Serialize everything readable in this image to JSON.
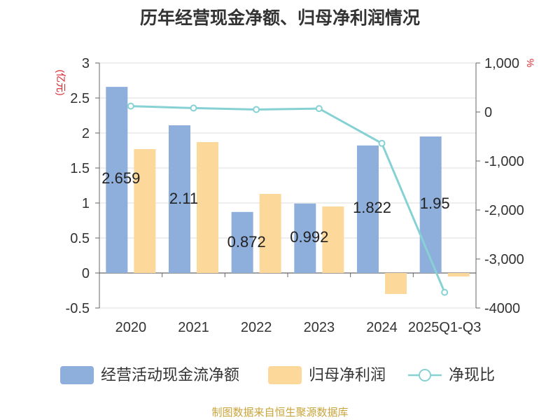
{
  "chart_data": {
    "type": "bar+line",
    "title": "历年经营现金净额、归母净利润情况",
    "left_axis": {
      "unit": "(亿元)",
      "ylim": [
        -0.5,
        3
      ],
      "ticks": [
        -0.5,
        0,
        0.5,
        1,
        1.5,
        2,
        2.5,
        3
      ]
    },
    "right_axis": {
      "unit": "%",
      "ylim": [
        -4000,
        1000
      ],
      "ticks": [
        -4000,
        -3000,
        -2000,
        -1000,
        0,
        1000
      ],
      "tick_labels": [
        "-4000",
        "-3,000",
        "-2,000",
        "-1,000",
        "0",
        "1,000"
      ]
    },
    "categories": [
      "2020",
      "2021",
      "2022",
      "2023",
      "2024",
      "2025Q1-Q3"
    ],
    "series": [
      {
        "name": "经营活动现金流净额",
        "type": "bar",
        "axis": "left",
        "color": "#8eaedc",
        "values": [
          2.659,
          2.11,
          0.872,
          0.992,
          1.822,
          1.95
        ],
        "labels": [
          "2.659",
          "2.11",
          "0.872",
          "0.992",
          "1.822",
          "1.95"
        ]
      },
      {
        "name": "归母净利润",
        "type": "bar",
        "axis": "left",
        "color": "#fcd89b",
        "values": [
          1.77,
          1.87,
          1.13,
          0.95,
          -0.3,
          -0.05
        ]
      },
      {
        "name": "净现比",
        "type": "line",
        "axis": "right",
        "color": "#86d1d4",
        "values": [
          120,
          80,
          50,
          70,
          -640,
          -3680
        ]
      }
    ],
    "grid": true,
    "legend": "bottom"
  },
  "source": "制图数据来自恒生聚源数据库"
}
